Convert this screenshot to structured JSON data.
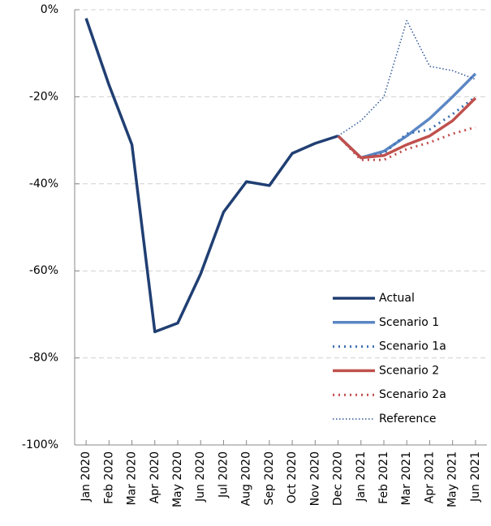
{
  "chart_data": {
    "type": "line",
    "categories": [
      "Jan 2020",
      "Feb 2020",
      "Mar 2020",
      "Apr 2020",
      "May 2020",
      "Jun 2020",
      "Jul 2020",
      "Aug 2020",
      "Sep 2020",
      "Oct 2020",
      "Nov 2020",
      "Dec 2020",
      "Jan 2021",
      "Feb 2021",
      "Mar 2021",
      "Apr 2021",
      "May 2021",
      "Jun 2021"
    ],
    "series": [
      {
        "name": "Actual",
        "color": "#203f73",
        "linestyle": "solid",
        "values": [
          -2,
          -17.3,
          -31,
          -74,
          -72,
          -60.7,
          -46.5,
          -39.5,
          -40.4,
          -33,
          -30.7,
          -29,
          null,
          null,
          null,
          null,
          null,
          null
        ]
      },
      {
        "name": "Scenario 1",
        "color": "#5b87c5",
        "linestyle": "solid",
        "values": [
          null,
          null,
          null,
          null,
          null,
          null,
          null,
          null,
          null,
          null,
          null,
          -29,
          -34,
          -32.5,
          -29,
          -25,
          -20,
          -14.7
        ]
      },
      {
        "name": "Scenario 1a",
        "color": "#3c6fb0",
        "linestyle": "dotted",
        "values": [
          null,
          null,
          null,
          null,
          null,
          null,
          null,
          null,
          null,
          null,
          null,
          -29,
          -34,
          -33,
          -28.5,
          -27.5,
          -24,
          -20
        ]
      },
      {
        "name": "Scenario 2",
        "color": "#c0504d",
        "linestyle": "solid",
        "values": [
          null,
          null,
          null,
          null,
          null,
          null,
          null,
          null,
          null,
          null,
          null,
          -29,
          -34,
          -33.5,
          -31,
          -29,
          -25.5,
          -20.3
        ]
      },
      {
        "name": "Scenario 2a",
        "color": "#c0504d",
        "linestyle": "dotted",
        "values": [
          null,
          null,
          null,
          null,
          null,
          null,
          null,
          null,
          null,
          null,
          null,
          -29,
          -34.5,
          -34.5,
          -32,
          -30.5,
          -28.5,
          -27
        ]
      },
      {
        "name": "Reference",
        "color": "#2e5597",
        "linestyle": "fine-dotted",
        "values": [
          null,
          null,
          null,
          null,
          null,
          null,
          null,
          null,
          null,
          null,
          null,
          -29,
          -25.5,
          -20,
          -2.5,
          -13,
          -14,
          -16
        ]
      }
    ],
    "ylim": [
      -100,
      0
    ],
    "yticks": [
      {
        "value": 0,
        "label": "0%"
      },
      {
        "value": -20,
        "label": "-20%"
      },
      {
        "value": -40,
        "label": "-40%"
      },
      {
        "value": -60,
        "label": "-60%"
      },
      {
        "value": -80,
        "label": "-80%"
      },
      {
        "value": -100,
        "label": "-100%"
      }
    ],
    "grid": true,
    "legend": "lower right"
  }
}
